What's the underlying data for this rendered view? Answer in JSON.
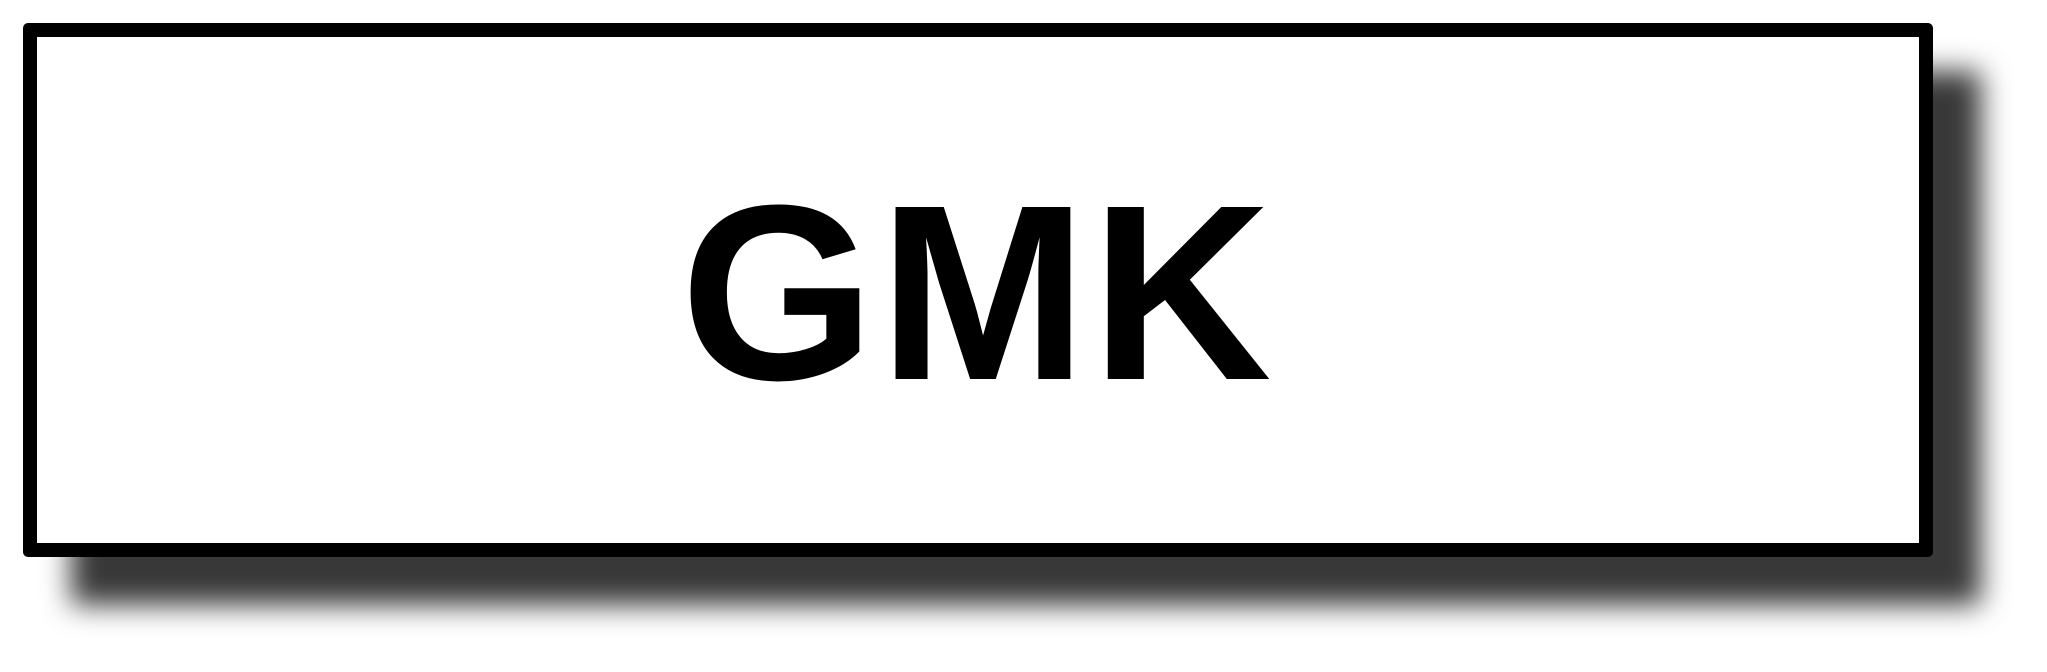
{
  "label": {
    "text": "GMK"
  },
  "colors": {
    "border": "#000000",
    "fill": "#ffffff",
    "text": "#000000",
    "shadow": "#4a4a4a"
  }
}
